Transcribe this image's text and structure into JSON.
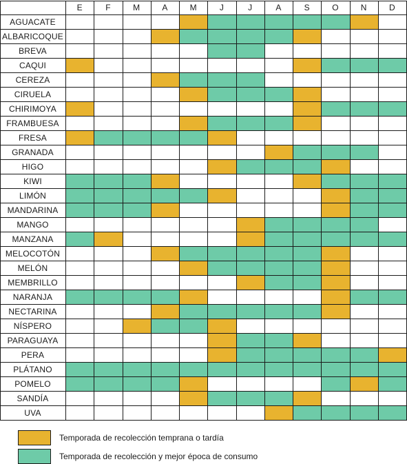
{
  "colors": {
    "early_late": "#E8B32F",
    "best": "#6ECBA8",
    "border": "#1a1a1a",
    "empty": "#ffffff"
  },
  "months": [
    "E",
    "F",
    "M",
    "A",
    "M",
    "J",
    "J",
    "A",
    "S",
    "O",
    "N",
    "D"
  ],
  "fruits": [
    {
      "name": "AGUACATE",
      "pattern": "....ebbbbbe."
    },
    {
      "name": "ALBARICOQUE",
      "pattern": "...ebbbbe..."
    },
    {
      "name": "BREVA",
      "pattern": ".....bb....."
    },
    {
      "name": "CAQUI",
      "pattern": "e.......ebbb"
    },
    {
      "name": "CEREZA",
      "pattern": "...ebbb....."
    },
    {
      "name": "CIRUELA",
      "pattern": "....ebbbe..."
    },
    {
      "name": "CHIRIMOYA",
      "pattern": "e.......ebbb"
    },
    {
      "name": "FRAMBUESA",
      "pattern": "....ebbbe..."
    },
    {
      "name": "FRESA",
      "pattern": "ebbbbe......"
    },
    {
      "name": "GRANADA",
      "pattern": ".......ebbb."
    },
    {
      "name": "HIGO",
      "pattern": ".....ebbbe.."
    },
    {
      "name": "KIWI",
      "pattern": "bbbe....ebbb"
    },
    {
      "name": "LIMÓN",
      "pattern": "bbbbbe...ebb"
    },
    {
      "name": "MANDARINA",
      "pattern": "bbbe.....ebb"
    },
    {
      "name": "MANGO",
      "pattern": "......ebbbb."
    },
    {
      "name": "MANZANA",
      "pattern": "be....ebbbbb"
    },
    {
      "name": "MELOCOTÓN",
      "pattern": "...ebbbbbe.."
    },
    {
      "name": "MELÓN",
      "pattern": "....ebbbbe.."
    },
    {
      "name": "MEMBRILLO",
      "pattern": "......ebbe.."
    },
    {
      "name": "NARANJA",
      "pattern": "bbbbe....ebb"
    },
    {
      "name": "NECTARINA",
      "pattern": "...ebbbbbe.."
    },
    {
      "name": "NÍSPERO",
      "pattern": "..ebbe......"
    },
    {
      "name": "PARAGUAYA",
      "pattern": ".....ebbe..."
    },
    {
      "name": "PERA",
      "pattern": ".....ebbbbbe"
    },
    {
      "name": "PLÁTANO",
      "pattern": "bbbbbbbbbbbb"
    },
    {
      "name": "POMELO",
      "pattern": "bbbbe....beb"
    },
    {
      "name": "SANDÍA",
      "pattern": "....ebbbe..."
    },
    {
      "name": "UVA",
      "pattern": ".......ebbbb"
    }
  ],
  "legend": [
    {
      "key": "early_late",
      "text": "Temporada de recolección temprana o tardía"
    },
    {
      "key": "best",
      "text": "Temporada de recolección y mejor época de consumo"
    }
  ]
}
